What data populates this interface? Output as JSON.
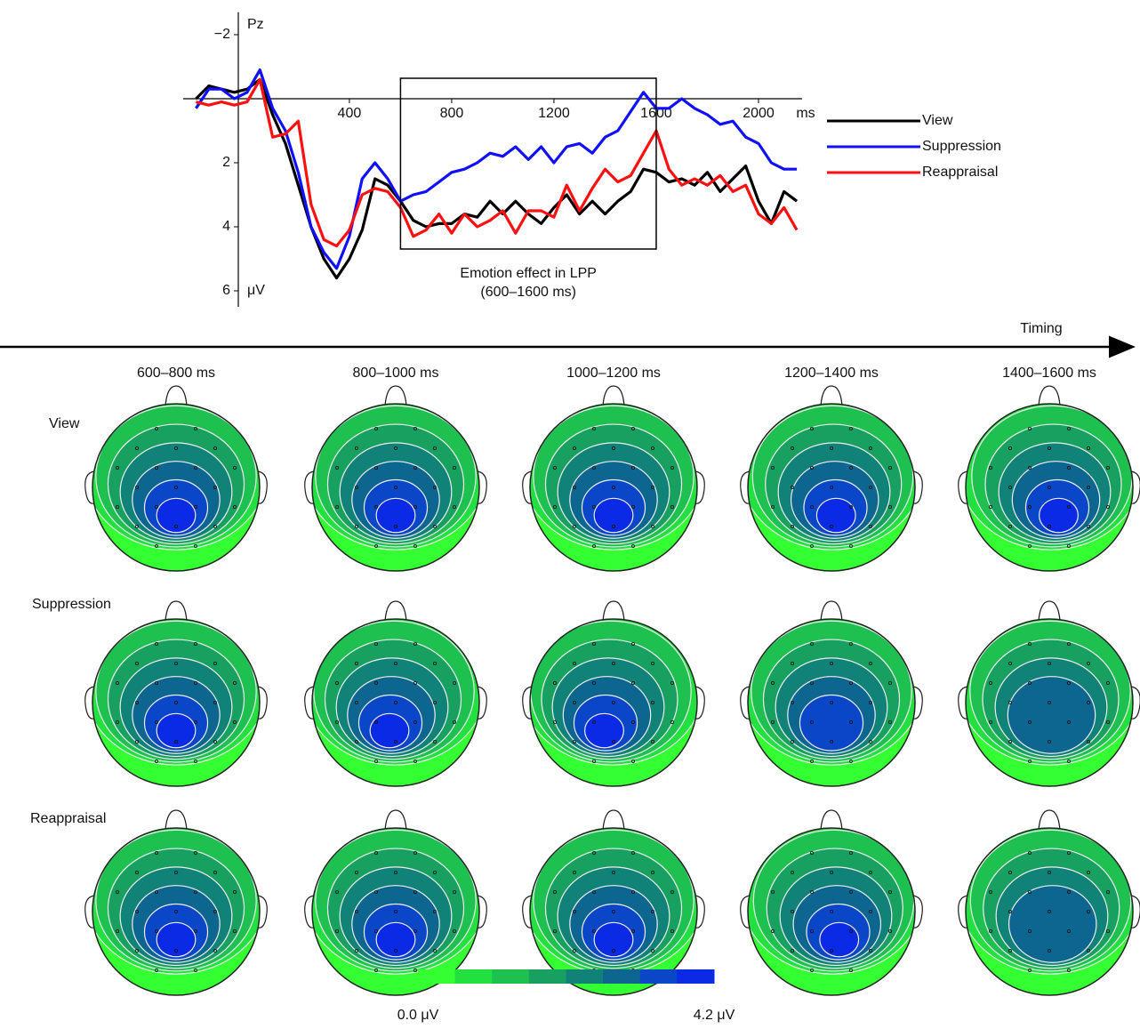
{
  "chart_data": {
    "type": "line",
    "channel_label": "Pz",
    "x_unit_label": "ms",
    "y_unit_label": "μV",
    "invert_y": true,
    "x": [
      -200,
      -150,
      -100,
      -50,
      0,
      50,
      100,
      150,
      200,
      250,
      300,
      350,
      400,
      450,
      500,
      550,
      600,
      650,
      700,
      750,
      800,
      850,
      900,
      950,
      1000,
      1050,
      1100,
      1150,
      1200,
      1250,
      1300,
      1350,
      1400,
      1450,
      1500,
      1550,
      1600,
      1650,
      1700,
      1750,
      1800,
      1850,
      1900,
      1950,
      2000,
      2050,
      2100,
      2150
    ],
    "xlim": [
      -250,
      2200
    ],
    "xticks": [
      400,
      800,
      1200,
      1600,
      2000
    ],
    "ylim": [
      -2.7,
      6.5
    ],
    "yticks": [
      {
        "value": -2,
        "label": "−2"
      },
      2,
      4,
      6
    ],
    "series": [
      {
        "name": "View",
        "color": "#000000",
        "values": [
          0,
          -0.4,
          -0.3,
          -0.2,
          -0.3,
          -0.6,
          0.5,
          1.4,
          2.7,
          4.0,
          5.0,
          5.6,
          5.0,
          4.1,
          2.5,
          2.7,
          3.2,
          3.8,
          4.0,
          3.9,
          3.9,
          3.6,
          3.7,
          3.2,
          3.6,
          3.2,
          3.6,
          3.9,
          3.4,
          3.0,
          3.6,
          3.2,
          3.6,
          3.2,
          2.9,
          2.2,
          2.3,
          2.6,
          2.5,
          2.7,
          2.3,
          2.9,
          2.5,
          2.1,
          3.2,
          3.9,
          2.9,
          3.2
        ]
      },
      {
        "name": "Suppression",
        "color": "#1010ff",
        "values": [
          0.3,
          -0.3,
          -0.3,
          0.0,
          -0.2,
          -0.9,
          0.3,
          1.0,
          2.3,
          4.0,
          4.8,
          5.3,
          4.3,
          2.5,
          2.0,
          2.5,
          3.2,
          3.0,
          2.9,
          2.6,
          2.3,
          2.2,
          2.0,
          1.7,
          1.8,
          1.5,
          1.9,
          1.5,
          2.0,
          1.5,
          1.4,
          1.7,
          1.2,
          1.0,
          0.4,
          -0.2,
          0.3,
          0.3,
          0.0,
          0.3,
          0.5,
          0.8,
          0.7,
          1.2,
          1.4,
          2.0,
          2.2,
          2.2
        ]
      },
      {
        "name": "Reappraisal",
        "color": "#ff1010",
        "values": [
          0.1,
          0.2,
          0.1,
          0.2,
          0.1,
          -0.6,
          1.2,
          1.1,
          0.7,
          3.3,
          4.4,
          4.6,
          4.1,
          3.0,
          2.8,
          2.9,
          3.4,
          4.3,
          4.1,
          3.6,
          4.2,
          3.6,
          4.0,
          3.8,
          3.5,
          4.2,
          3.5,
          3.5,
          3.7,
          2.7,
          3.5,
          2.8,
          2.2,
          2.6,
          2.4,
          1.7,
          1.0,
          2.2,
          2.7,
          2.5,
          2.7,
          2.4,
          2.9,
          2.7,
          3.6,
          3.9,
          3.4,
          4.1
        ]
      }
    ],
    "highlight": {
      "x": [
        600,
        1600
      ],
      "label": "Emotion effect in LPP",
      "sublabel": "(600–1600 ms)"
    }
  },
  "timeline_label": "Timing",
  "topography": {
    "columns": [
      "600–800 ms",
      "800–1000 ms",
      "1000–1200 ms",
      "1200–1400 ms",
      "1400–1600 ms"
    ],
    "rows": [
      "View",
      "Suppression",
      "Reappraisal"
    ],
    "colorbar": {
      "colors": [
        "#33ff33",
        "#22e040",
        "#1ec050",
        "#18a060",
        "#108278",
        "#0c6690",
        "#0a46c8",
        "#0a2ae6"
      ],
      "min_label": "0.0 μV",
      "max_label": "4.2 μV"
    }
  }
}
